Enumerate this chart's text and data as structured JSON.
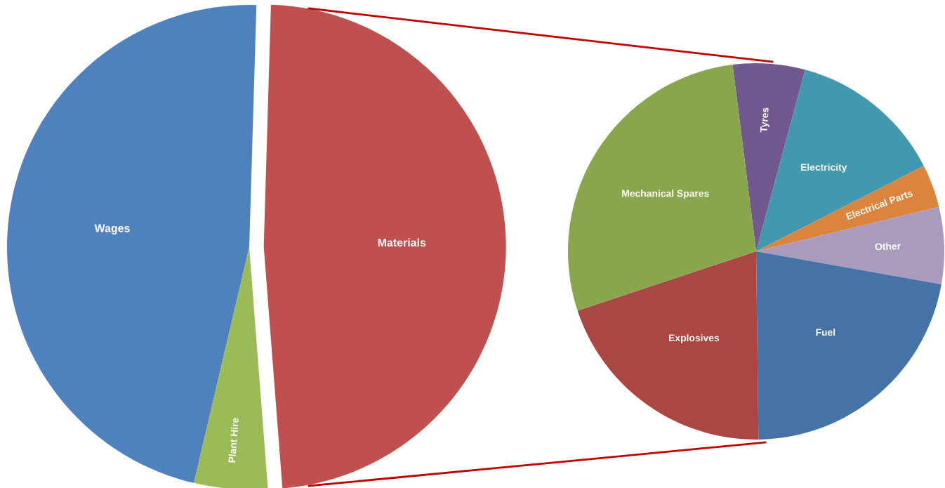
{
  "chart_data": [
    {
      "type": "pie",
      "categories": [
        "Wages",
        "Plant Hire",
        "Materials"
      ],
      "values": [
        46.8,
        4.9,
        48.3
      ],
      "colors": [
        "#4f81bd",
        "#9bbb59",
        "#c0504d"
      ]
    },
    {
      "type": "pie",
      "categories": [
        "Tyres",
        "Electricity",
        "Electrical Parts",
        "Other",
        "Fuel",
        "Explosives",
        "Mechanical Spares"
      ],
      "values": [
        6.2,
        13.3,
        3.7,
        6.6,
        22.0,
        20.1,
        28.1
      ],
      "colors": [
        "#71588f",
        "#4198af",
        "#db843d",
        "#a99bbd",
        "#4572a7",
        "#aa4643",
        "#8aa64d"
      ]
    }
  ]
}
